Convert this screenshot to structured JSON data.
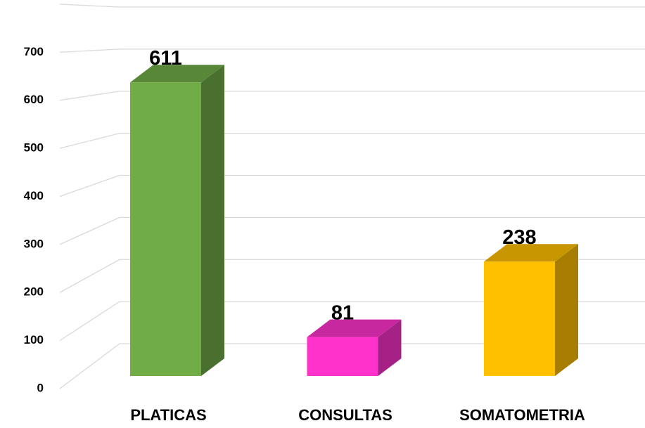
{
  "chart_data": {
    "type": "bar3d",
    "categories": [
      "PLATICAS",
      "CONSULTAS",
      "SOMATOMETRIA"
    ],
    "values": [
      611,
      81,
      238
    ],
    "colors": [
      "#70ad47",
      "#ff33cc",
      "#ffc000"
    ],
    "ylim": [
      0,
      800
    ],
    "yticks": [
      0,
      100,
      200,
      300,
      400,
      500,
      600,
      700
    ],
    "grid": true
  }
}
